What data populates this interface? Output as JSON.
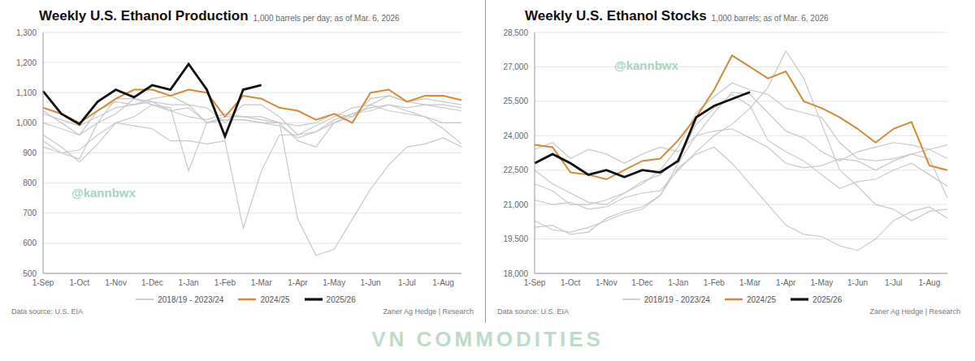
{
  "chart_data": [
    {
      "type": "line",
      "title": "Weekly U.S. Ethanol Production",
      "subtitle": "1,000 barrels per day; as of Mar. 6, 2026",
      "categories": [
        "1-Sep",
        null,
        "1-Oct",
        null,
        "1-Nov",
        null,
        "1-Dec",
        null,
        "1-Jan",
        null,
        "1-Feb",
        null,
        "1-Mar",
        null,
        "1-Apr",
        null,
        "1-May",
        null,
        "1-Jun",
        null,
        "1-Jul",
        null,
        "1-Aug",
        null
      ],
      "ylim": [
        500,
        1300
      ],
      "yticks": [
        500,
        600,
        700,
        800,
        900,
        {
          "value": 1000,
          "label": "1,000"
        },
        {
          "value": 1100,
          "label": "1,100"
        },
        {
          "value": 1200,
          "label": "1,200"
        },
        {
          "value": 1300,
          "label": "1,300"
        }
      ],
      "grid": true,
      "legend": "bottom",
      "series": [
        {
          "name": "2018/19 - 2023/24",
          "color": "#c8c8c8",
          "values": [
            [
              1030,
              1010,
              990,
              1020,
              1050,
              1060,
              1070,
              1040,
              1020,
              1010,
              1030,
              1020,
              1010,
              1000,
              990,
              1000,
              1030,
              1020,
              1080,
              1090,
              1070,
              1060,
              1050,
              1040
            ],
            [
              1000,
              980,
              960,
              1000,
              1030,
              1080,
              1060,
              1040,
              1050,
              1000,
              1020,
              1020,
              1020,
              1000,
              680,
              560,
              580,
              680,
              780,
              860,
              920,
              930,
              950,
              920
            ],
            [
              920,
              900,
              910,
              960,
              1000,
              990,
              980,
              940,
              940,
              930,
              940,
              650,
              840,
              960,
              960,
              970,
              1000,
              1030,
              1050,
              1060,
              1040,
              1020,
              980,
              930
            ],
            [
              940,
              900,
              880,
              1000,
              1080,
              1080,
              1070,
              1060,
              1060,
              1000,
              1010,
              1010,
              1000,
              1000,
              940,
              920,
              1000,
              1020,
              1060,
              1040,
              1030,
              1020,
              1000,
              1000
            ],
            [
              960,
              920,
              870,
              930,
              1000,
              1020,
              1060,
              1050,
              840,
              1000,
              1010,
              1010,
              1000,
              990,
              950,
              970,
              1010,
              1030,
              1040,
              1060,
              1050,
              1060,
              1060,
              1050
            ],
            [
              1040,
              1000,
              960,
              1040,
              1070,
              1060,
              1080,
              1090,
              1060,
              1050,
              1000,
              1060,
              1060,
              1020,
              960,
              990,
              1020,
              1050,
              1060,
              1090,
              1070,
              1080,
              1070,
              1060
            ]
          ]
        },
        {
          "name": "2024/25",
          "color": "#d68a36",
          "values": [
            1050,
            1030,
            1000,
            1040,
            1080,
            1110,
            1110,
            1090,
            1110,
            1100,
            1020,
            1090,
            1080,
            1050,
            1040,
            1010,
            1030,
            1000,
            1100,
            1110,
            1070,
            1090,
            1090,
            1075
          ]
        },
        {
          "name": "2025/26",
          "color": "#111111",
          "values": [
            1105,
            1030,
            995,
            1070,
            1110,
            1085,
            1125,
            1110,
            1195,
            1110,
            955,
            1110,
            1125,
            null,
            null,
            null,
            null,
            null,
            null,
            null,
            null,
            null,
            null,
            null
          ]
        }
      ],
      "annotations": [
        "Data source: U.S. EIA",
        "Zaner Ag Hedge | Research"
      ],
      "watermark": "@kannbwx"
    },
    {
      "type": "line",
      "title": "Weekly U.S. Ethanol Stocks",
      "subtitle": "1,000 barrels; as of Mar. 6, 2026",
      "categories": [
        "1-Sep",
        null,
        "1-Oct",
        null,
        "1-Nov",
        null,
        "1-Dec",
        null,
        "1-Jan",
        null,
        "1-Feb",
        null,
        "1-Mar",
        null,
        "1-Apr",
        null,
        "1-May",
        null,
        "1-Jun",
        null,
        "1-Jul",
        null,
        "1-Aug",
        null
      ],
      "ylim": [
        18000,
        28500
      ],
      "yticks": [
        {
          "value": 18000,
          "label": "18,000"
        },
        {
          "value": 19500,
          "label": "19,500"
        },
        {
          "value": 21000,
          "label": "21,000"
        },
        {
          "value": 22500,
          "label": "22,500"
        },
        {
          "value": 24000,
          "label": "24,000"
        },
        {
          "value": 25500,
          "label": "25,500"
        },
        {
          "value": 27000,
          "label": "27,000"
        },
        {
          "value": 28500,
          "label": "28,500"
        }
      ],
      "grid": true,
      "legend": "bottom",
      "series": [
        {
          "name": "2018/19 - 2023/24",
          "color": "#c8c8c8",
          "values": [
            [
              23400,
              23700,
              23000,
              23400,
              23200,
              22800,
              23200,
              23500,
              23300,
              24000,
              24200,
              24300,
              23900,
              23500,
              22800,
              22600,
              22700,
              23000,
              22900,
              22500,
              22900,
              23200,
              23400,
              23600
            ],
            [
              21200,
              21000,
              21100,
              20800,
              20900,
              21300,
              21500,
              21600,
              22500,
              23300,
              24000,
              24500,
              25200,
              26100,
              27700,
              26500,
              24500,
              22500,
              21800,
              21000,
              20800,
              20300,
              20700,
              20800
            ],
            [
              20000,
              20100,
              19700,
              19800,
              20400,
              20700,
              20900,
              21400,
              22600,
              23200,
              23500,
              22800,
              21900,
              21000,
              20100,
              19700,
              19600,
              19200,
              19000,
              19500,
              20300,
              20700,
              20900,
              20400
            ],
            [
              20300,
              19900,
              19800,
              20000,
              20300,
              20600,
              20800,
              21400,
              22800,
              24000,
              25000,
              25900,
              25800,
              25000,
              24200,
              23900,
              23300,
              22900,
              23300,
              23500,
              23700,
              23600,
              23400,
              23000
            ],
            [
              22500,
              21900,
              21500,
              21100,
              21000,
              21500,
              22000,
              22300,
              23000,
              24500,
              25200,
              25800,
              25300,
              23800,
              23300,
              22900,
              22300,
              21700,
              22000,
              22100,
              22500,
              22800,
              22300,
              21800
            ],
            [
              21900,
              21600,
              21000,
              21000,
              21200,
              21500,
              21900,
              22500,
              23500,
              25000,
              25700,
              26300,
              26000,
              25800,
              25200,
              25000,
              24800,
              23700,
              23000,
              22900,
              23000,
              23200,
              23000,
              21300
            ]
          ]
        },
        {
          "name": "2024/25",
          "color": "#d68a36",
          "values": [
            23600,
            23500,
            22400,
            22300,
            22100,
            22500,
            22900,
            23000,
            23800,
            24800,
            26000,
            27500,
            27000,
            26500,
            26800,
            25500,
            25200,
            24800,
            24300,
            23700,
            24300,
            24600,
            22700,
            22500
          ]
        },
        {
          "name": "2025/26",
          "color": "#111111",
          "values": [
            22800,
            23200,
            22800,
            22300,
            22500,
            22200,
            22500,
            22400,
            22900,
            24800,
            25300,
            25600,
            25900,
            null,
            null,
            null,
            null,
            null,
            null,
            null,
            null,
            null,
            null,
            null
          ]
        }
      ],
      "annotations": [
        "Data source: U.S. EIA",
        "Zaner Ag Hedge | Research"
      ],
      "watermark": "@kannbwx"
    }
  ],
  "watermark": "VN COMMODITIES"
}
